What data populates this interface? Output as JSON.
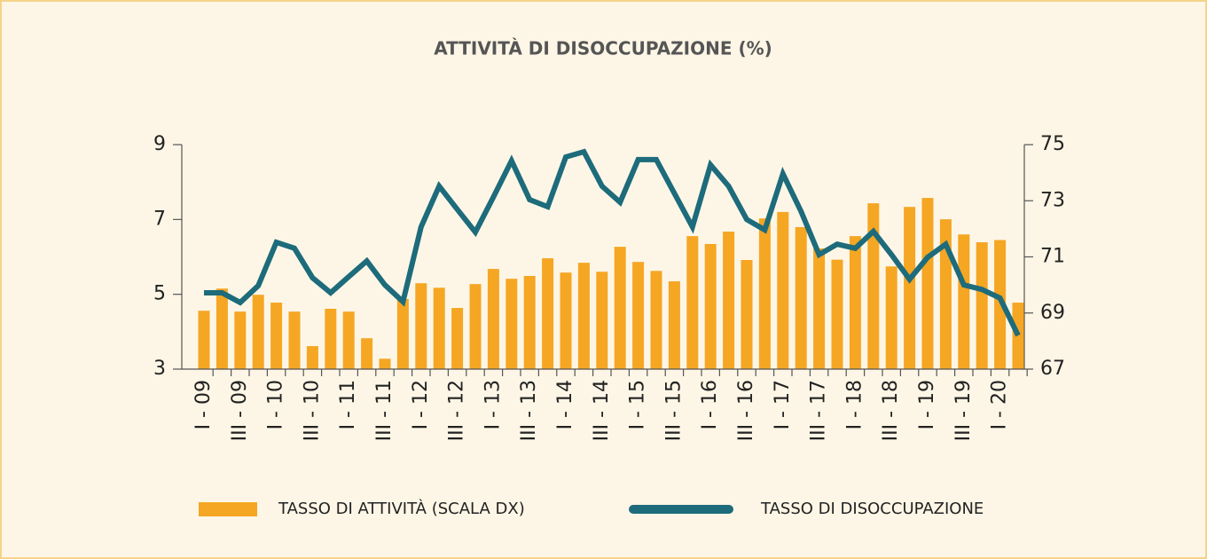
{
  "chart_data": {
    "type": "bar_line",
    "title": "ATTIVITÀ DI DISOCCUPAZIONE (%)",
    "categories": [
      "I - 09",
      null,
      "III - 09",
      null,
      "I - 10",
      null,
      "III - 10",
      null,
      "I - 11",
      null,
      "III - 11",
      null,
      "I - 12",
      null,
      "III - 12",
      null,
      "I - 13",
      null,
      "III - 13",
      null,
      "I - 14",
      null,
      "III - 14",
      null,
      "I - 15",
      null,
      "III - 15",
      null,
      "I - 16",
      null,
      "III - 16",
      null,
      "I - 17",
      null,
      "III - 17",
      null,
      "I - 18",
      null,
      "III - 18",
      null,
      "I - 19",
      null,
      "III - 19",
      null,
      "I - 20",
      null
    ],
    "series": [
      {
        "name": "TASSO DI ATTIVITÀ (SCALA DX)",
        "type": "bar",
        "axis": "y2",
        "color": "#f5a623",
        "values": [
          69.08,
          69.87,
          69.05,
          69.65,
          69.37,
          69.05,
          67.82,
          69.15,
          69.05,
          68.1,
          67.37,
          69.5,
          70.06,
          69.9,
          69.18,
          70.03,
          70.57,
          70.22,
          70.32,
          70.95,
          70.44,
          70.79,
          70.47,
          71.36,
          70.82,
          70.5,
          70.13,
          71.74,
          71.46,
          71.9,
          70.89,
          72.37,
          72.6,
          72.06,
          71.3,
          70.9,
          71.74,
          72.91,
          70.66,
          72.78,
          73.1,
          72.34,
          71.8,
          71.52,
          71.6,
          69.37
        ]
      },
      {
        "name": "TASSO DI DISOCCUPAZIONE",
        "type": "line",
        "axis": "y",
        "color": "#1d6b7b",
        "values": [
          5.04,
          5.04,
          4.78,
          5.23,
          6.39,
          6.23,
          5.44,
          5.04,
          5.47,
          5.89,
          5.25,
          4.8,
          6.8,
          7.89,
          7.27,
          6.66,
          7.6,
          8.57,
          7.53,
          7.34,
          8.67,
          8.81,
          7.89,
          7.46,
          8.6,
          8.6,
          7.7,
          6.8,
          8.46,
          7.89,
          7.0,
          6.72,
          8.22,
          7.22,
          6.06,
          6.34,
          6.23,
          6.68,
          6.06,
          5.4,
          5.99,
          6.34,
          5.25,
          5.13,
          4.9,
          3.9
        ]
      }
    ],
    "ylim": [
      3,
      9
    ],
    "yticks": [
      3,
      5,
      7,
      9
    ],
    "y2lim": [
      67,
      75
    ],
    "y2ticks": [
      67,
      69,
      71,
      73,
      75
    ],
    "legend": "bottom"
  }
}
